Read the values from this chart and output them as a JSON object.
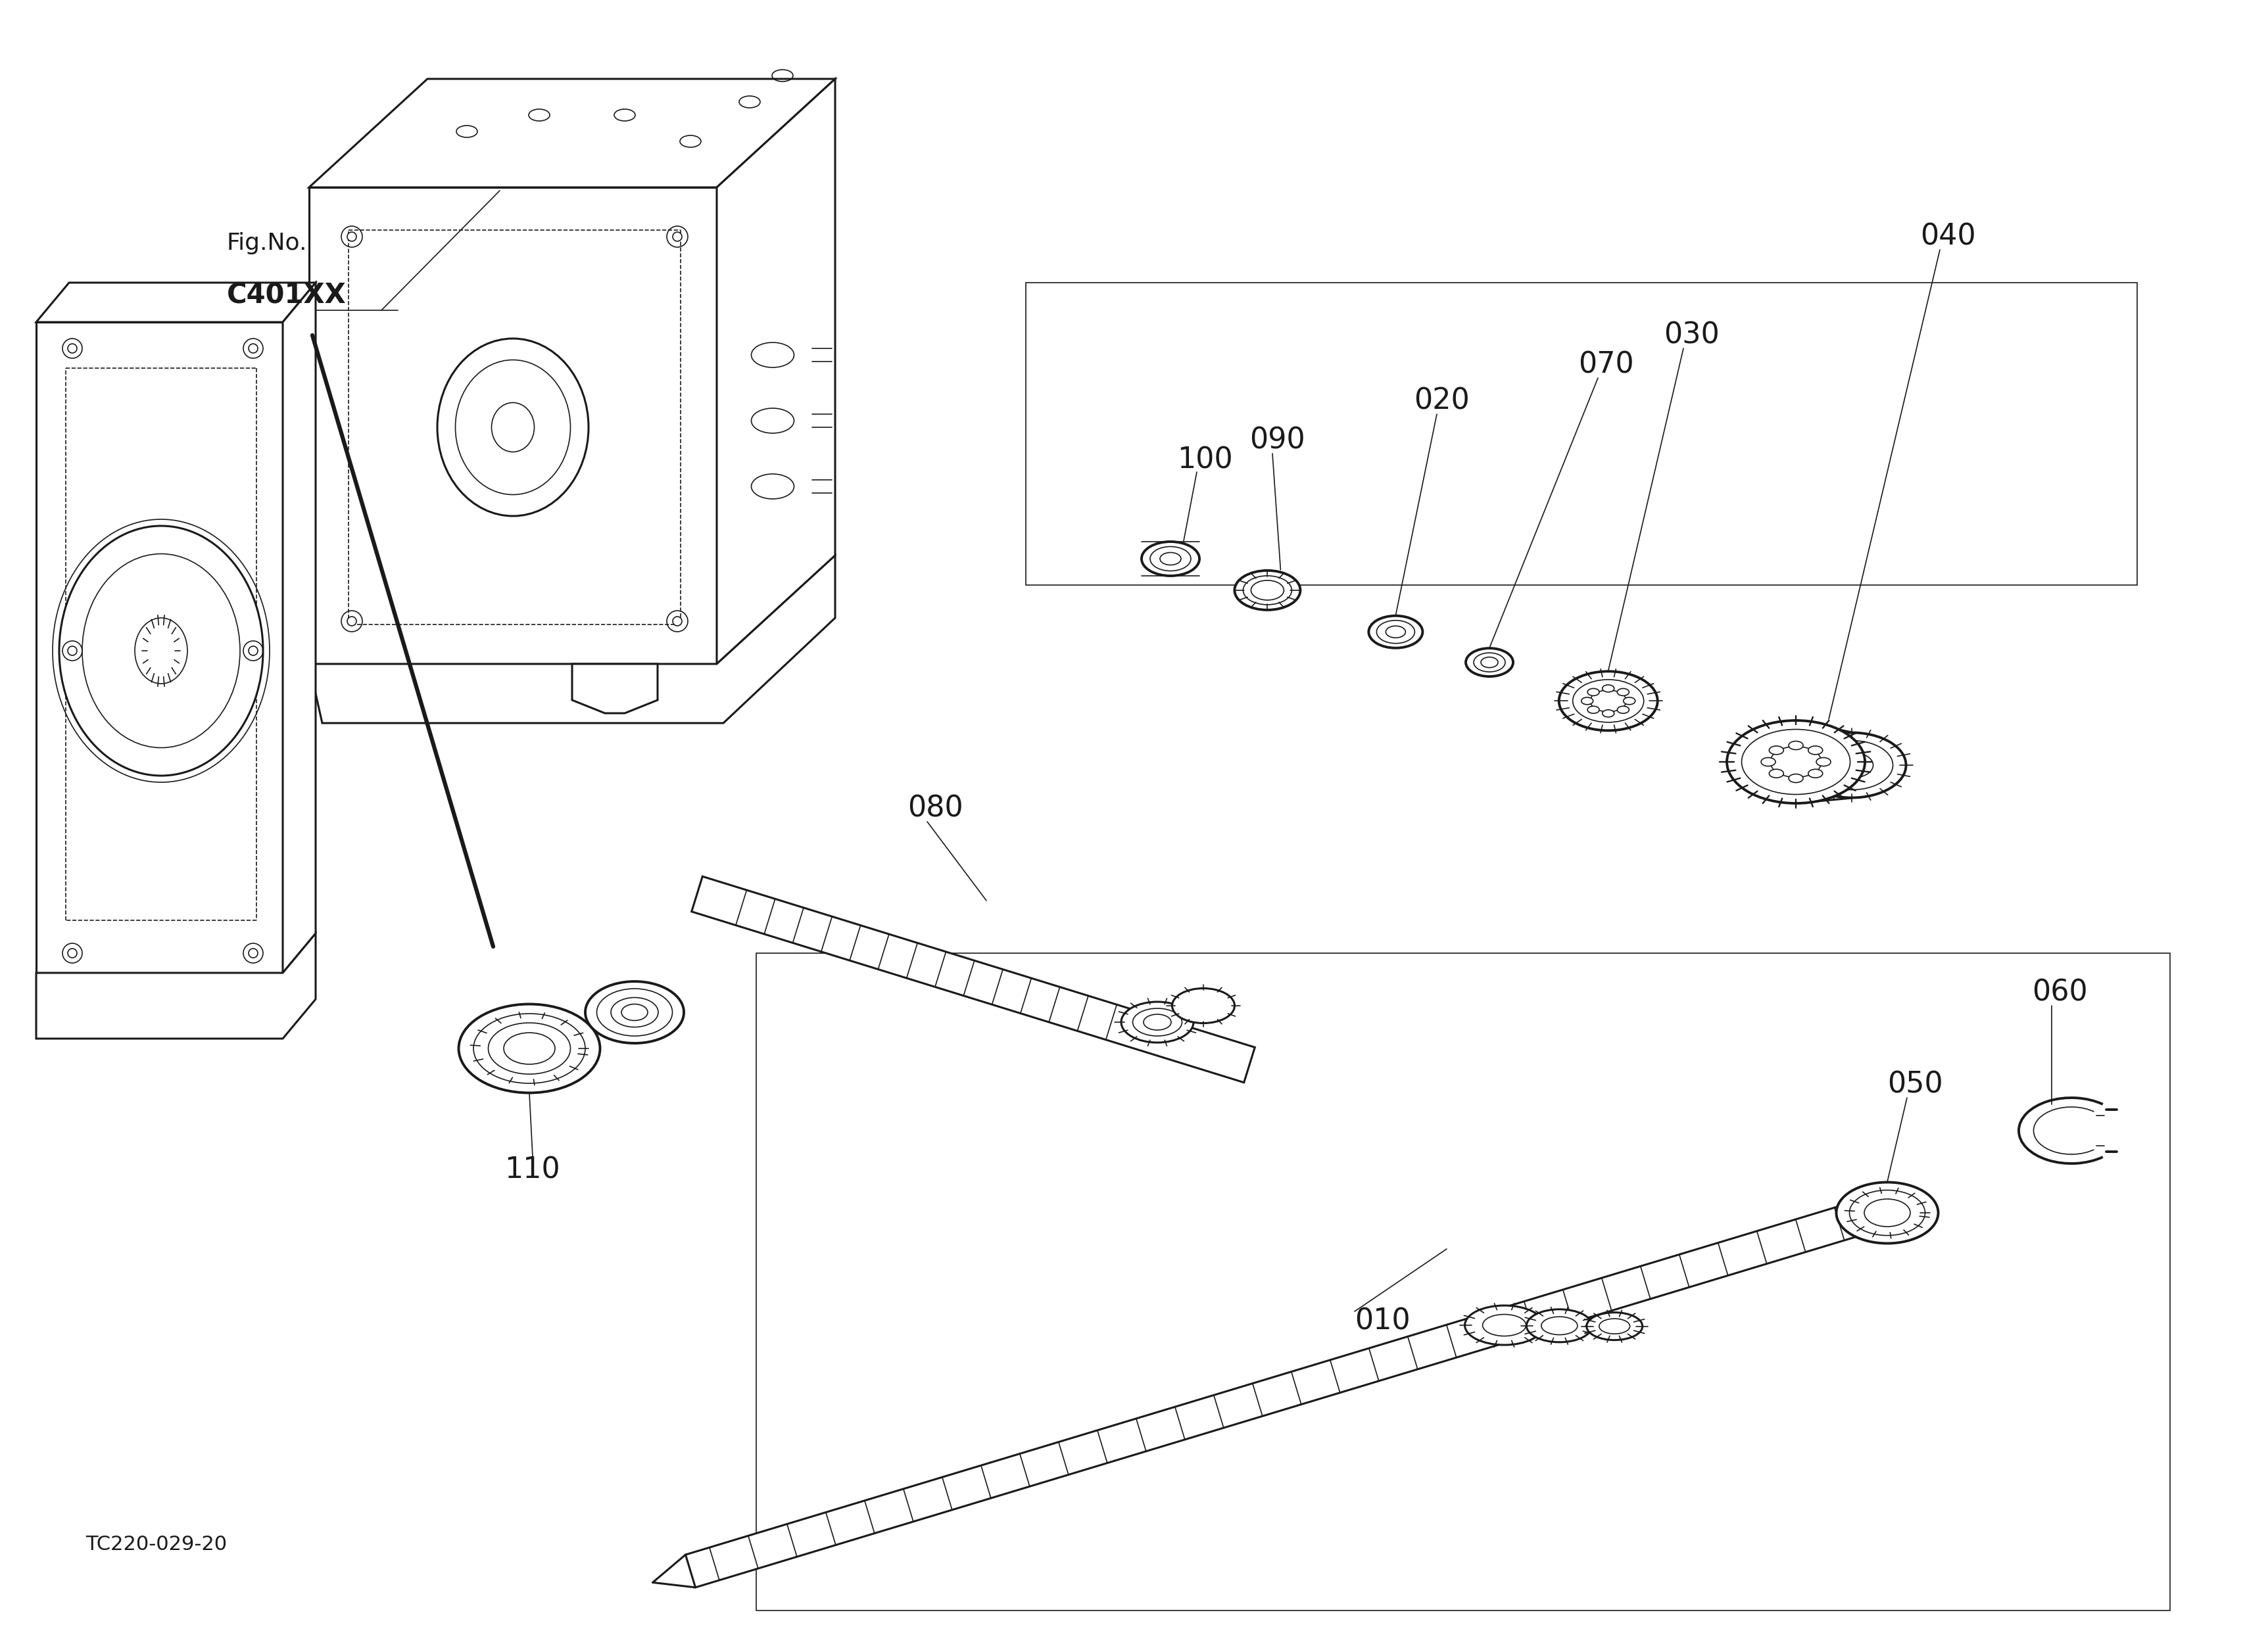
{
  "bg_color": "#ffffff",
  "line_color": "#1a1a1a",
  "fig_no": "Fig.No.",
  "fig_code": "C401XX",
  "tc_code": "TC220-029-20",
  "lw_main": 2.2,
  "lw_thin": 1.2,
  "lw_thick": 2.8,
  "lw_bold": 3.5,
  "font_label": 32,
  "font_figno": 28,
  "font_tc": 22
}
